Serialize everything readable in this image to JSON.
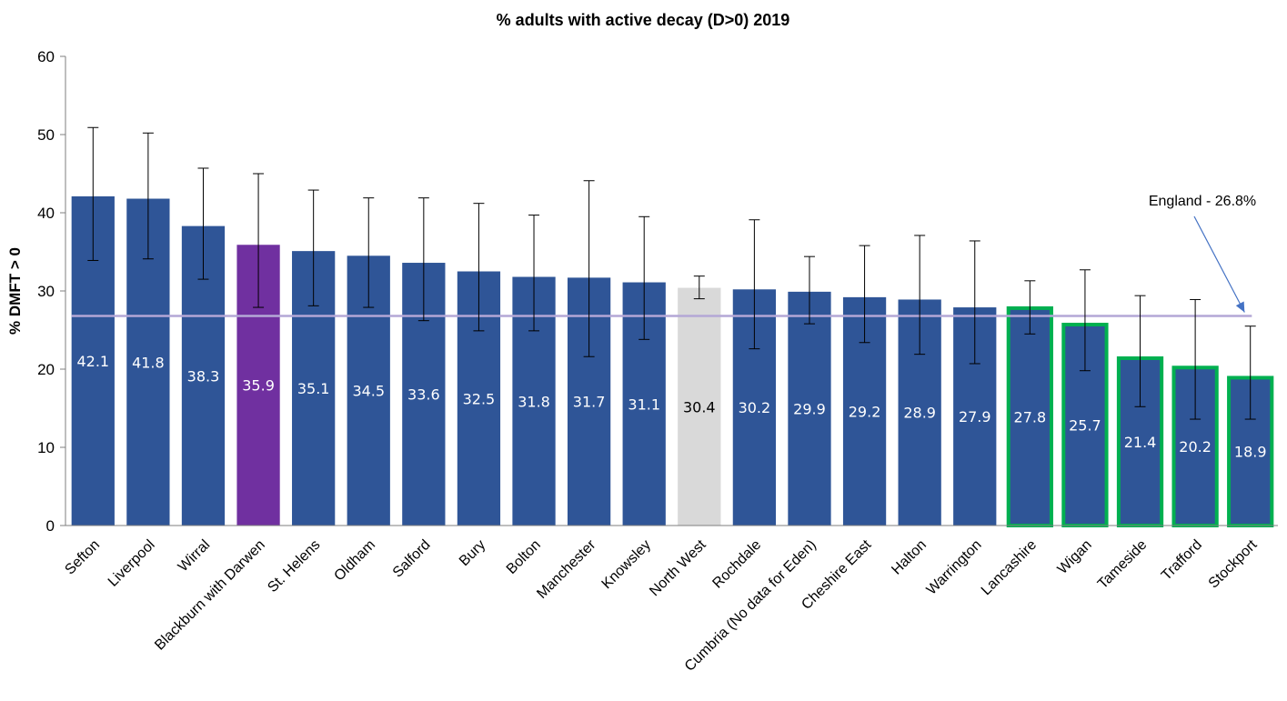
{
  "chart_data": {
    "type": "bar",
    "title": "% adults with active decay (D>0) 2019",
    "xlabel": "",
    "ylabel": "% DMFT > 0",
    "ylim": [
      0,
      60
    ],
    "yticks": [
      0,
      10,
      20,
      30,
      40,
      50,
      60
    ],
    "grid": false,
    "legend": "none",
    "categories": [
      "Sefton",
      "Liverpool",
      "Wirral",
      "Blackburn with Darwen",
      "St. Helens",
      "Oldham",
      "Salford",
      "Bury",
      "Bolton",
      "Manchester",
      "Knowsley",
      "North West",
      "Rochdale",
      "Cumbria (No data for Eden)",
      "Cheshire East",
      "Halton",
      "Warrington",
      "Lancashire",
      "Wigan",
      "Tameside",
      "Trafford",
      "Stockport"
    ],
    "values": [
      42.1,
      41.8,
      38.3,
      35.9,
      35.1,
      34.5,
      33.6,
      32.5,
      31.8,
      31.7,
      31.1,
      30.4,
      30.2,
      29.9,
      29.2,
      28.9,
      27.9,
      27.8,
      25.7,
      21.4,
      20.2,
      18.9
    ],
    "value_labels": [
      "42.1",
      "41.8",
      "38.3",
      "35.9",
      "35.1",
      "34.5",
      "33.6",
      "32.5",
      "31.8",
      "31.7",
      "31.1",
      "30.4",
      "30.2",
      "29.9",
      "29.2",
      "28.9",
      "27.9",
      "27.8",
      "25.7",
      "21.4",
      "20.2",
      "18.9"
    ],
    "ci_lower": [
      33.9,
      34.1,
      31.5,
      27.9,
      28.1,
      27.9,
      26.2,
      24.9,
      24.9,
      21.6,
      23.8,
      29.0,
      22.6,
      25.8,
      23.4,
      21.9,
      20.7,
      24.5,
      19.8,
      15.2,
      13.6,
      13.6
    ],
    "ci_upper": [
      50.9,
      50.2,
      45.7,
      45.0,
      42.9,
      41.9,
      41.9,
      41.2,
      39.7,
      44.1,
      39.5,
      31.9,
      39.1,
      34.4,
      35.8,
      37.1,
      36.4,
      31.3,
      32.7,
      29.4,
      28.9,
      25.5
    ],
    "bar_colors": [
      "#2f5597",
      "#2f5597",
      "#2f5597",
      "#7030a0",
      "#2f5597",
      "#2f5597",
      "#2f5597",
      "#2f5597",
      "#2f5597",
      "#2f5597",
      "#2f5597",
      "#d9d9d9",
      "#2f5597",
      "#2f5597",
      "#2f5597",
      "#2f5597",
      "#2f5597",
      "#2f5597",
      "#2f5597",
      "#2f5597",
      "#2f5597",
      "#2f5597"
    ],
    "label_colors": [
      "#ffffff",
      "#ffffff",
      "#ffffff",
      "#ffffff",
      "#ffffff",
      "#ffffff",
      "#ffffff",
      "#ffffff",
      "#ffffff",
      "#ffffff",
      "#ffffff",
      "#000000",
      "#ffffff",
      "#ffffff",
      "#ffffff",
      "#ffffff",
      "#ffffff",
      "#ffffff",
      "#ffffff",
      "#ffffff",
      "#ffffff",
      "#ffffff"
    ],
    "highlighted": [
      false,
      false,
      false,
      false,
      false,
      false,
      false,
      false,
      false,
      false,
      false,
      false,
      false,
      false,
      false,
      false,
      false,
      true,
      true,
      true,
      true,
      true
    ],
    "highlight_color": "#00b050",
    "reference_line": {
      "value": 26.8,
      "label": "England - 26.8%",
      "color": "#b4a7d6"
    },
    "annotation_arrow_color": "#4472c4"
  }
}
